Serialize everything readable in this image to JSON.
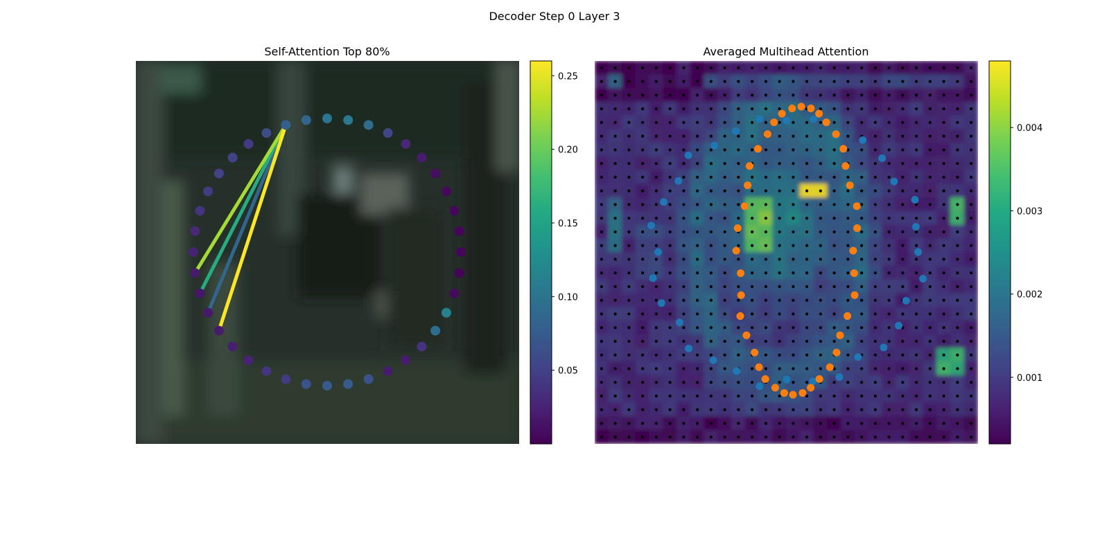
{
  "figure": {
    "suptitle": "Decoder Step 0 Layer 3"
  },
  "colormap": "viridis",
  "chart_data": [
    {
      "type": "scatter",
      "title": "Self-Attention Top 80%",
      "background": "blurred photo (dark forest scene)",
      "ring": {
        "count": 40,
        "values": [
          0.079,
          0.085,
          0.102,
          0.103,
          0.092,
          0.055,
          0.03,
          0.02,
          0.01,
          0.005,
          0.005,
          0.004,
          0.004,
          0.003,
          0.007,
          0.112,
          0.093,
          0.038,
          0.02,
          0.02,
          0.065,
          0.075,
          0.072,
          0.065,
          0.045,
          0.04,
          0.025,
          0.022,
          0.02,
          0.018,
          0.016,
          0.02,
          0.025,
          0.03,
          0.04,
          0.045,
          0.05,
          0.05,
          0.045,
          0.06
        ]
      },
      "links": [
        {
          "from": 0,
          "to": 28,
          "value": 0.26
        },
        {
          "from": 0,
          "to": 31,
          "value": 0.225
        },
        {
          "from": 0,
          "to": 30,
          "value": 0.16
        },
        {
          "from": 0,
          "to": 29,
          "value": 0.085
        }
      ],
      "colorbar": {
        "range": [
          0.0,
          0.26
        ],
        "ticks": [
          "0.05",
          "0.10",
          "0.15",
          "0.20",
          "0.25"
        ],
        "tick_values": [
          0.05,
          0.1,
          0.15,
          0.2,
          0.25
        ]
      }
    },
    {
      "type": "heatmap",
      "title": "Averaged Multihead Attention",
      "grid": {
        "rows": 28,
        "cols": 28
      },
      "series": [
        {
          "color": "#1f77b4"
        },
        {
          "color": "#ff7f0e"
        }
      ],
      "colorbar": {
        "range": [
          0.0002,
          0.0048
        ],
        "ticks": [
          "0.001",
          "0.002",
          "0.003",
          "0.004"
        ],
        "tick_values": [
          0.001,
          0.002,
          0.003,
          0.004
        ]
      }
    }
  ]
}
